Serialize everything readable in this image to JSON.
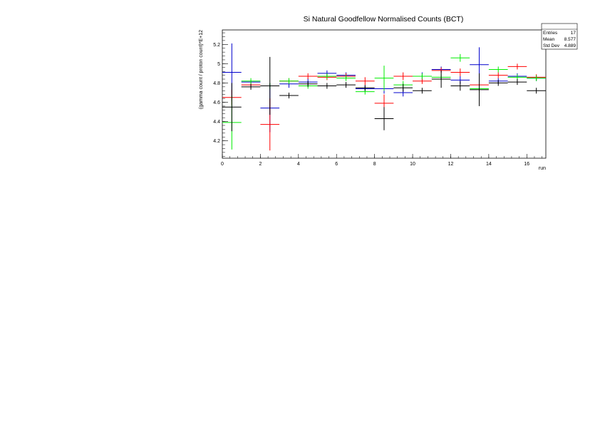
{
  "chart_data": {
    "type": "scatter",
    "title": "Si Natural Goodfellow Normalised Counts (BCT)",
    "xlabel": "run",
    "ylabel": "(gamma count / proton count)*E+12",
    "xlim": [
      0,
      17
    ],
    "ylim": [
      4.02,
      5.35
    ],
    "x_ticks": [
      0,
      2,
      4,
      6,
      8,
      10,
      12,
      14,
      16
    ],
    "y_ticks": [
      4.2,
      4.4,
      4.6,
      4.8,
      5.0,
      5.2
    ],
    "y_tick_labels": [
      "4.2",
      "4.4",
      "4.6",
      "4.8",
      "5",
      "5.2"
    ],
    "grid": false,
    "legend": "none",
    "stats_box": {
      "title": "",
      "rows": [
        {
          "label": "Entries",
          "value": "17"
        },
        {
          "label": "Mean",
          "value": "8.577"
        },
        {
          "label": "Std Dev",
          "value": "4.889"
        }
      ]
    },
    "series": [
      {
        "color": "#0000cc",
        "x": [
          0.5,
          1.5,
          2.5,
          3.5,
          4.5,
          5.5,
          6.5,
          7.5,
          8.5,
          9.5,
          10.5,
          11.5,
          12.5,
          13.5,
          14.5,
          15.5,
          16.5
        ],
        "y": [
          4.91,
          4.81,
          4.54,
          4.79,
          4.81,
          4.9,
          4.88,
          4.74,
          4.74,
          4.7,
          4.87,
          4.94,
          4.83,
          4.99,
          4.82,
          4.87,
          4.85
        ],
        "yerr": [
          0.3,
          0.02,
          0.25,
          0.04,
          0.04,
          0.03,
          0.03,
          0.03,
          0.05,
          0.04,
          0.04,
          0.03,
          0.04,
          0.18,
          0.03,
          0.03,
          0.03
        ]
      },
      {
        "color": "#ff0000",
        "x": [
          0.5,
          1.5,
          2.5,
          3.5,
          4.5,
          5.5,
          6.5,
          7.5,
          8.5,
          9.5,
          10.5,
          11.5,
          12.5,
          13.5,
          14.5,
          15.5,
          16.5
        ],
        "y": [
          4.65,
          4.78,
          4.37,
          4.82,
          4.87,
          4.86,
          4.87,
          4.82,
          4.59,
          4.87,
          4.82,
          4.93,
          4.91,
          4.78,
          4.88,
          4.97,
          4.86
        ],
        "yerr": [
          0.08,
          0.03,
          0.27,
          0.03,
          0.03,
          0.03,
          0.03,
          0.04,
          0.09,
          0.04,
          0.03,
          0.03,
          0.04,
          0.04,
          0.03,
          0.03,
          0.03
        ]
      },
      {
        "color": "#00ee00",
        "x": [
          0.5,
          1.5,
          2.5,
          3.5,
          4.5,
          5.5,
          6.5,
          7.5,
          8.5,
          9.5,
          10.5,
          11.5,
          12.5,
          13.5,
          14.5,
          15.5,
          16.5
        ],
        "y": [
          4.39,
          4.82,
          4.77,
          4.82,
          4.77,
          4.87,
          4.85,
          4.71,
          4.85,
          4.78,
          4.87,
          4.86,
          5.06,
          4.74,
          4.94,
          4.86,
          4.85
        ],
        "yerr": [
          0.28,
          0.03,
          0.03,
          0.03,
          0.03,
          0.03,
          0.03,
          0.03,
          0.13,
          0.04,
          0.03,
          0.03,
          0.04,
          0.04,
          0.03,
          0.03,
          0.03
        ]
      },
      {
        "color": "#000000",
        "x": [
          0.5,
          1.5,
          2.5,
          3.5,
          4.5,
          5.5,
          6.5,
          7.5,
          8.5,
          9.5,
          10.5,
          11.5,
          12.5,
          13.5,
          14.5,
          15.5,
          16.5
        ],
        "y": [
          4.55,
          4.76,
          4.77,
          4.67,
          4.79,
          4.77,
          4.78,
          4.75,
          4.43,
          4.75,
          4.72,
          4.84,
          4.77,
          4.73,
          4.8,
          4.81,
          4.72
        ],
        "yerr": [
          0.25,
          0.03,
          0.3,
          0.03,
          0.03,
          0.03,
          0.03,
          0.03,
          0.12,
          0.04,
          0.03,
          0.09,
          0.05,
          0.17,
          0.03,
          0.03,
          0.03
        ]
      }
    ]
  }
}
